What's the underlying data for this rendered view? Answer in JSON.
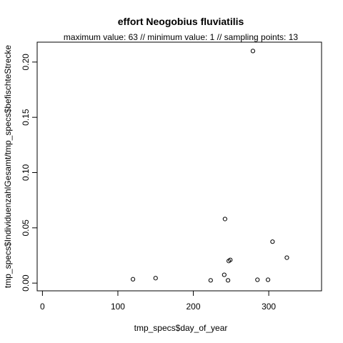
{
  "chart_data": {
    "type": "scatter",
    "title": "effort Neogobius fluviatilis",
    "subtitle": "maximum value: 63  //  minimum value: 1  // sampling points: 13",
    "xlabel": "tmp_specs$day_of_year",
    "ylabel": "tmp_specs$IndividuenzahlGesamt/tmp_specs$befischteStrecke",
    "xlim": [
      -7,
      370
    ],
    "ylim": [
      -0.007,
      0.218
    ],
    "x_ticks": [
      0,
      100,
      200,
      300
    ],
    "x_tick_labels": [
      "0",
      "100",
      "200",
      "300"
    ],
    "y_ticks": [
      0.0,
      0.05,
      0.1,
      0.15,
      0.2
    ],
    "y_tick_labels": [
      "0.00",
      "0.05",
      "0.10",
      "0.15",
      "0.20"
    ],
    "grid": false,
    "point_style": "open-circle",
    "points": [
      {
        "x": 120,
        "y": 0.0035
      },
      {
        "x": 150,
        "y": 0.0045
      },
      {
        "x": 223,
        "y": 0.0025
      },
      {
        "x": 241,
        "y": 0.0075
      },
      {
        "x": 242,
        "y": 0.058
      },
      {
        "x": 246,
        "y": 0.0025
      },
      {
        "x": 247,
        "y": 0.02
      },
      {
        "x": 249,
        "y": 0.021
      },
      {
        "x": 279,
        "y": 0.21
      },
      {
        "x": 285,
        "y": 0.003
      },
      {
        "x": 299,
        "y": 0.003
      },
      {
        "x": 305,
        "y": 0.0375
      },
      {
        "x": 324,
        "y": 0.023
      }
    ]
  }
}
